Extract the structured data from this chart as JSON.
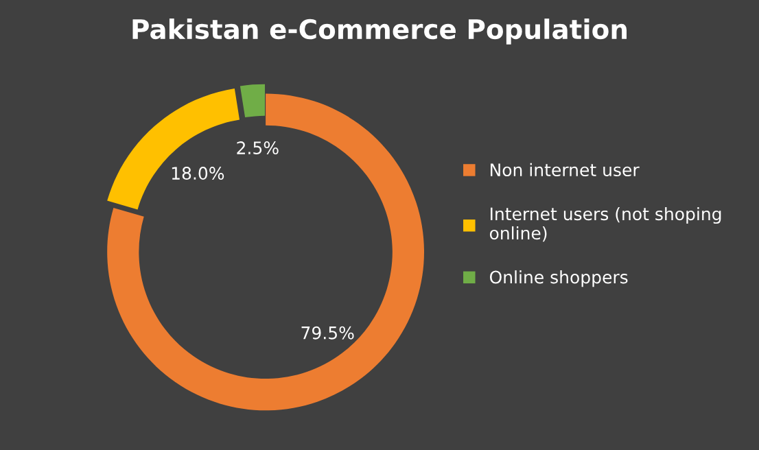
{
  "chart_data": {
    "type": "donut",
    "title": "Pakistan e-Commerce Population",
    "categories": [
      "Non internet user",
      "Internet users (not shoping online)",
      "Online shoppers"
    ],
    "values": [
      79.5,
      18.0,
      2.5
    ],
    "colors": [
      "#ed7d31",
      "#ffc000",
      "#70ad47"
    ],
    "value_labels": [
      "79.5%",
      "18.0%",
      "2.5%"
    ],
    "legend": "right"
  }
}
